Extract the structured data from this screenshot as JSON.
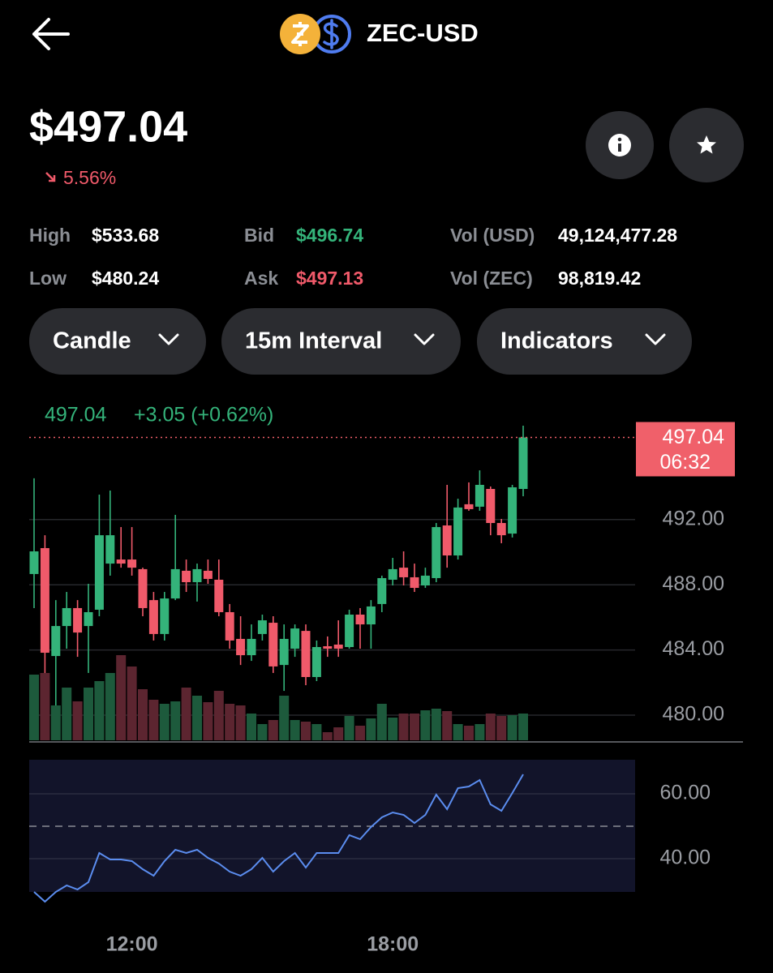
{
  "header": {
    "title": "ZEC-USD"
  },
  "price": "$497.04",
  "change": "5.56%",
  "stats": [
    {
      "label": "High",
      "value": "$533.68"
    },
    {
      "label": "Low",
      "value": "$480.24"
    },
    {
      "label": "Bid",
      "value": "$496.74"
    },
    {
      "label": "Ask",
      "value": "$497.13"
    },
    {
      "label": "Vol (USD)",
      "value": "49,124,477.28"
    },
    {
      "label": "Vol (ZEC)",
      "value": "98,819.42"
    }
  ],
  "controls": [
    "Candle",
    "15m Interval",
    "Indicators"
  ],
  "chart_data": [
    {
      "type": "candlestick",
      "legend": [
        "497.04",
        "+3.05 (+0.62%)"
      ],
      "price_tag": [
        "497.04",
        "06:32"
      ],
      "up_color": "#34b37a",
      "down_color": "#f05a6a",
      "tag_color": "#f0606a",
      "categories": [
        null,
        null,
        null,
        null,
        null,
        null,
        null,
        null,
        null,
        "12:00",
        null,
        null,
        null,
        null,
        null,
        null,
        null,
        null,
        null,
        null,
        null,
        null,
        null,
        null,
        null,
        null,
        null,
        null,
        null,
        null,
        null,
        null,
        null,
        "18:00",
        null,
        null,
        null,
        null,
        null,
        null,
        null,
        null,
        null,
        null,
        null,
        null
      ],
      "open": [
        488.66,
        490.25,
        483.63,
        485.47,
        486.57,
        485.47,
        486.47,
        489.3,
        489.55,
        489.55,
        488.96,
        487.06,
        484.98,
        487.16,
        488.86,
        488.16,
        488.86,
        488.31,
        486.32,
        484.68,
        483.68,
        484.98,
        485.67,
        483.08,
        484.08,
        485.17,
        482.34,
        484.23,
        484.33,
        484.18,
        486.17,
        485.57,
        486.82,
        488.31,
        489.05,
        488.46,
        487.96,
        488.41,
        491.64,
        489.8,
        492.94,
        492.79,
        493.88,
        491.79,
        491.14,
        493.88
      ],
      "high": [
        494.53,
        491.04,
        487.06,
        487.56,
        487.06,
        488.06,
        493.53,
        493.78,
        491.54,
        491.54,
        489.05,
        487.56,
        487.56,
        492.29,
        489.55,
        489.3,
        489.55,
        489.55,
        486.82,
        486.07,
        485.57,
        486.17,
        486.07,
        485.57,
        485.57,
        485.57,
        484.58,
        484.83,
        485.82,
        486.47,
        486.57,
        487.06,
        488.56,
        489.65,
        490.05,
        489.3,
        489.05,
        491.79,
        494.13,
        493.28,
        494.28,
        495.02,
        494.03,
        492.04,
        494.13,
        497.76
      ],
      "low": [
        486.57,
        482.59,
        480.35,
        484.08,
        483.58,
        482.59,
        486.07,
        488.56,
        489.05,
        488.56,
        486.07,
        484.58,
        484.58,
        487.06,
        487.56,
        486.97,
        488.06,
        486.07,
        484.08,
        483.08,
        483.33,
        484.58,
        482.59,
        481.49,
        483.58,
        481.84,
        482.09,
        483.58,
        483.58,
        484.08,
        484.08,
        484.08,
        486.32,
        487.96,
        487.96,
        487.56,
        487.81,
        488.16,
        489.05,
        489.55,
        492.54,
        492.54,
        491.04,
        490.55,
        490.9,
        493.43
      ],
      "close": [
        490.05,
        483.83,
        485.47,
        486.57,
        485.07,
        486.32,
        491.04,
        491.04,
        489.3,
        489.05,
        486.57,
        484.98,
        487.16,
        488.96,
        488.16,
        488.96,
        488.36,
        486.32,
        484.58,
        483.68,
        484.68,
        485.82,
        482.99,
        484.68,
        485.32,
        482.34,
        484.18,
        484.08,
        484.08,
        486.17,
        485.57,
        486.67,
        488.41,
        488.96,
        488.46,
        487.81,
        488.56,
        491.54,
        489.8,
        492.74,
        492.64,
        494.13,
        491.79,
        491.04,
        493.98,
        497.04
      ],
      "ylim": [
        478.36,
        497.76
      ],
      "yticks": [
        {
          "value": 480,
          "label": "480.00"
        },
        {
          "value": 484,
          "label": "484.00"
        },
        {
          "value": 488,
          "label": "488.00"
        },
        {
          "value": 492,
          "label": "492.00"
        }
      ],
      "grid": true
    },
    {
      "type": "bar",
      "up_color": "#1d5a3c",
      "down_color": "#5c2530",
      "values": [
        81,
        83,
        43,
        65,
        48,
        65,
        73,
        83,
        105,
        91,
        63,
        50,
        45,
        48,
        65,
        55,
        47,
        61,
        45,
        43,
        33,
        20,
        25,
        55,
        25,
        23,
        20,
        10,
        16,
        30,
        18,
        27,
        45,
        28,
        33,
        33,
        37,
        39,
        36,
        20,
        18,
        20,
        33,
        30,
        31,
        33
      ],
      "ylim": [
        0,
        110
      ]
    },
    {
      "type": "line",
      "color": "#5b8def",
      "values": [
        29.75,
        26.75,
        29.75,
        31.75,
        30.5,
        32.75,
        41.75,
        39.75,
        39.75,
        39.25,
        36.75,
        34.75,
        39.25,
        42.75,
        41.75,
        42.75,
        40.25,
        38.5,
        36,
        34.75,
        36.75,
        40.25,
        36,
        39.25,
        41.75,
        37.25,
        41.75,
        41.75,
        41.75,
        47.25,
        46,
        49.75,
        52.75,
        54.25,
        53.5,
        51,
        53.5,
        59.75,
        55.25,
        61.75,
        62.25,
        64.25,
        56.75,
        54.75,
        60.25,
        66
      ],
      "reference_line": 50,
      "ylim": [
        29.75,
        70.5
      ],
      "yticks": [
        {
          "value": 40,
          "label": "40.00"
        },
        {
          "value": 60,
          "label": "60.00"
        }
      ],
      "grid": true
    }
  ]
}
